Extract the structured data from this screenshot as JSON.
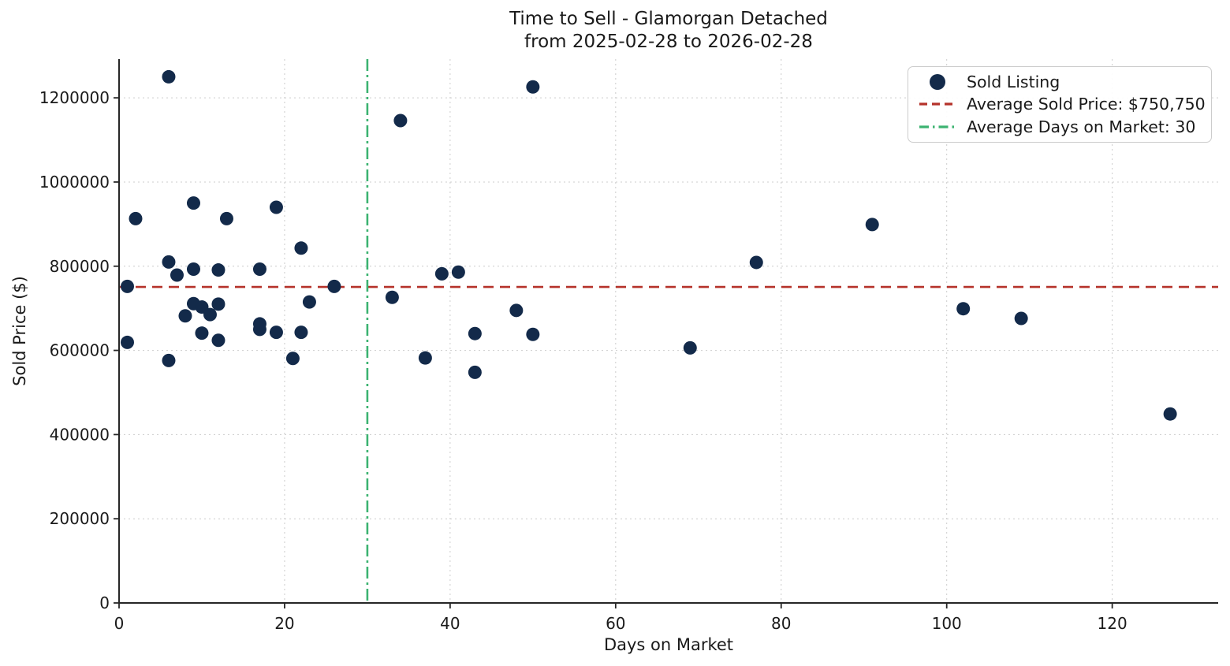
{
  "title_line1": "Time to Sell - Glamorgan Detached",
  "title_line2": "from 2025-02-28 to 2026-02-28",
  "chart_data": {
    "type": "scatter",
    "title": "Time to Sell - Glamorgan Detached\nfrom 2025-02-28 to 2026-02-28",
    "xlabel": "Days on Market",
    "ylabel": "Sold Price ($)",
    "xlim": [
      0,
      132.8
    ],
    "ylim": [
      0,
      1292000
    ],
    "x_ticks": [
      0,
      20,
      40,
      60,
      80,
      100,
      120
    ],
    "y_ticks": [
      0,
      200000,
      400000,
      600000,
      800000,
      1000000,
      1200000
    ],
    "grid": true,
    "legend_position": "upper right",
    "colors": {
      "marker": "#132a4a",
      "avg_price_line": "#b5322a",
      "avg_days_line": "#3cb371",
      "grid": "#cccccc",
      "spine": "#262626"
    },
    "series": [
      {
        "name": "Sold Listing",
        "points": [
          [
            1,
            752000
          ],
          [
            1,
            619000
          ],
          [
            2,
            913000
          ],
          [
            6,
            1250000
          ],
          [
            6,
            810000
          ],
          [
            6,
            576000
          ],
          [
            7,
            779000
          ],
          [
            8,
            682000
          ],
          [
            9,
            950000
          ],
          [
            9,
            793000
          ],
          [
            9,
            711000
          ],
          [
            10,
            703000
          ],
          [
            10,
            641000
          ],
          [
            11,
            685000
          ],
          [
            12,
            791000
          ],
          [
            12,
            710000
          ],
          [
            12,
            624000
          ],
          [
            13,
            913000
          ],
          [
            17,
            793000
          ],
          [
            17,
            663000
          ],
          [
            17,
            650000
          ],
          [
            19,
            940000
          ],
          [
            19,
            643000
          ],
          [
            21,
            581000
          ],
          [
            22,
            843000
          ],
          [
            22,
            643000
          ],
          [
            23,
            715000
          ],
          [
            26,
            752000
          ],
          [
            33,
            726000
          ],
          [
            34,
            1146000
          ],
          [
            37,
            582000
          ],
          [
            39,
            782000
          ],
          [
            41,
            786000
          ],
          [
            43,
            640000
          ],
          [
            43,
            548000
          ],
          [
            48,
            695000
          ],
          [
            50,
            1226000
          ],
          [
            50,
            638000
          ],
          [
            69,
            606000
          ],
          [
            77,
            809000
          ],
          [
            91,
            899000
          ],
          [
            102,
            699000
          ],
          [
            109,
            676000
          ],
          [
            127,
            449000
          ]
        ]
      }
    ],
    "reference_lines": {
      "avg_sold_price": {
        "value": 750750,
        "orientation": "horizontal",
        "style": "dashed"
      },
      "avg_days_on_market": {
        "value": 30,
        "orientation": "vertical",
        "style": "dashdot"
      }
    },
    "legend_items": [
      {
        "label": "Sold Listing",
        "swatch": "dot"
      },
      {
        "label": "Average Sold Price: $750,750",
        "swatch": "dashed"
      },
      {
        "label": "Average Days on Market: 30",
        "swatch": "dashdot"
      }
    ]
  }
}
